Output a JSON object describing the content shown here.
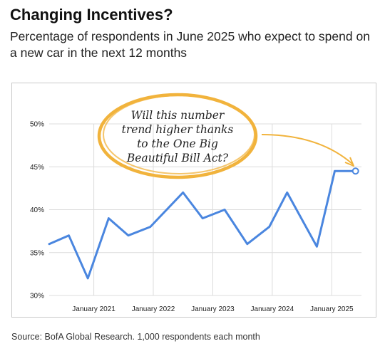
{
  "header": {
    "title": "Changing Incentives?",
    "subtitle": "Percentage of respondents in June 2025 who expect to spend on a new car in the next 12 months"
  },
  "footer": {
    "source": "Source: BofA Global Research. 1,000 respondents each month"
  },
  "colors": {
    "line": "#4a86df",
    "grid": "#dcdcdc",
    "annotation_ring": "#f1b33c"
  },
  "chart_data": {
    "type": "line",
    "title": "",
    "xlabel": "",
    "ylabel": "",
    "ylim": [
      30,
      50
    ],
    "y_ticks": [
      "30%",
      "35%",
      "40%",
      "45%",
      "50%"
    ],
    "y_tick_values": [
      30,
      35,
      40,
      45,
      50
    ],
    "x_ticks": [
      "January 2021",
      "January 2022",
      "January 2023",
      "January 2024",
      "January 2025"
    ],
    "x_tick_values": [
      2021,
      2022,
      2023,
      2024,
      2025
    ],
    "xlim": [
      2020.25,
      2025.5
    ],
    "grid": true,
    "series": [
      {
        "x": [
          2020.25,
          2020.58,
          2020.9,
          2021.25,
          2021.58,
          2021.95,
          2022.5,
          2022.83,
          2023.2,
          2023.58,
          2023.95,
          2024.25,
          2024.75,
          2025.05,
          2025.4
        ],
        "values": [
          36,
          37,
          32,
          39,
          37,
          38,
          42,
          39,
          40,
          36,
          38,
          42,
          35.7,
          44.5,
          44.5
        ],
        "highlight_last": true
      }
    ],
    "annotation": {
      "lines": [
        "Will this number",
        "trend higher thanks",
        "to the One Big",
        "Beautiful Bill Act?"
      ]
    }
  }
}
